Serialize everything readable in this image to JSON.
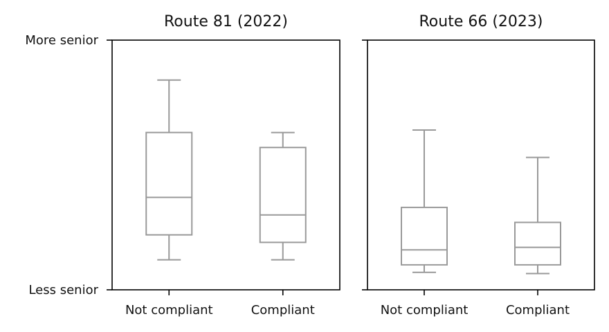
{
  "chart_data": [
    {
      "type": "box",
      "title": "Route 81 (2022)",
      "categories": [
        "Not compliant",
        "Compliant"
      ],
      "ylim": [
        0,
        1
      ],
      "y_tick_labels": {
        "top": "More senior",
        "bottom": "Less senior"
      },
      "boxes": [
        {
          "category": "Not compliant",
          "whisker_low": 0.12,
          "q1": 0.22,
          "median": 0.37,
          "q3": 0.63,
          "whisker_high": 0.84
        },
        {
          "category": "Compliant",
          "whisker_low": 0.12,
          "q1": 0.19,
          "median": 0.3,
          "q3": 0.57,
          "whisker_high": 0.63
        }
      ]
    },
    {
      "type": "box",
      "title": "Route 66 (2023)",
      "categories": [
        "Not compliant",
        "Compliant"
      ],
      "ylim": [
        0,
        1
      ],
      "y_tick_labels": {
        "top": "",
        "bottom": ""
      },
      "boxes": [
        {
          "category": "Not compliant",
          "whisker_low": 0.07,
          "q1": 0.1,
          "median": 0.16,
          "q3": 0.33,
          "whisker_high": 0.64
        },
        {
          "category": "Compliant",
          "whisker_low": 0.065,
          "q1": 0.1,
          "median": 0.17,
          "q3": 0.27,
          "whisker_high": 0.53
        }
      ]
    }
  ]
}
